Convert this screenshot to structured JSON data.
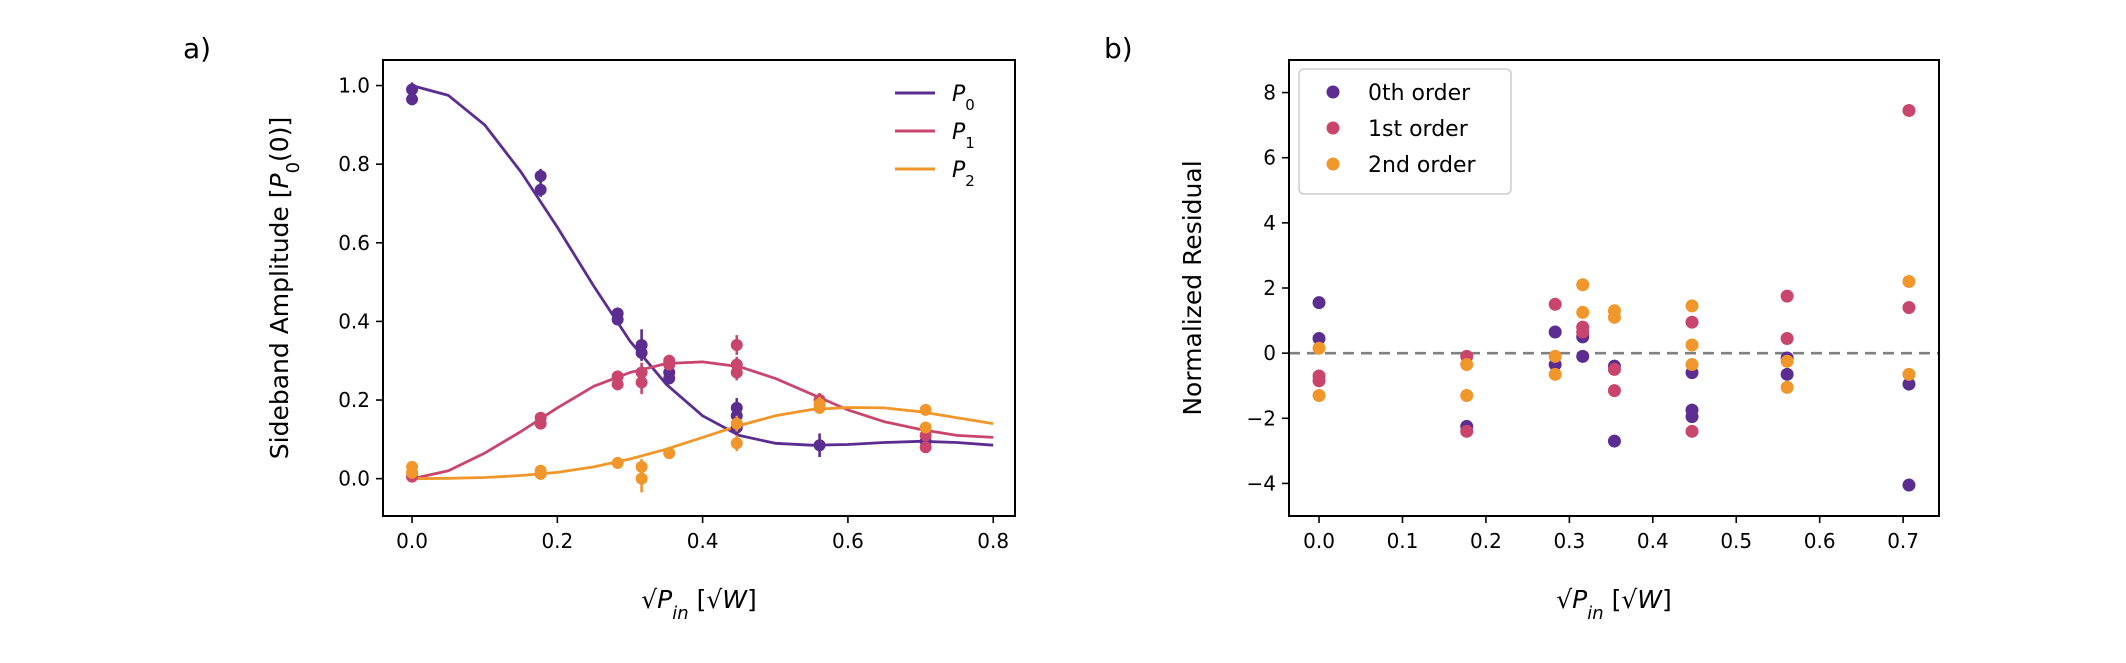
{
  "colors": {
    "P0": "#5c2d91",
    "P1": "#c9456e",
    "P2": "#f0962a",
    "zero_line": "#808080"
  },
  "chart_data": [
    {
      "panel_label": "a)",
      "type": "line",
      "xlabel": "√P_in [√W]",
      "ylabel": "Sideband Amplitude [P0(0)]",
      "xlim": [
        -0.04,
        0.83
      ],
      "ylim": [
        -0.095,
        1.065
      ],
      "xticks": [
        0.0,
        0.2,
        0.4,
        0.6,
        0.8
      ],
      "yticks": [
        0.0,
        0.2,
        0.4,
        0.6,
        0.8,
        1.0
      ],
      "xtick_labels": [
        "0.0",
        "0.2",
        "0.4",
        "0.6",
        "0.8"
      ],
      "ytick_labels": [
        "0.0",
        "0.2",
        "0.4",
        "0.6",
        "0.8",
        "1.0"
      ],
      "legend_position": "top-right",
      "fit_curves": [
        {
          "name": "P0",
          "color_key": "P0",
          "x": [
            0,
            0.05,
            0.1,
            0.15,
            0.2,
            0.25,
            0.3,
            0.35,
            0.4,
            0.45,
            0.5,
            0.55,
            0.6,
            0.65,
            0.7,
            0.75,
            0.8
          ],
          "y": [
            1.0,
            0.975,
            0.9,
            0.78,
            0.64,
            0.49,
            0.35,
            0.24,
            0.16,
            0.11,
            0.09,
            0.085,
            0.087,
            0.092,
            0.095,
            0.092,
            0.085
          ]
        },
        {
          "name": "P1",
          "color_key": "P1",
          "x": [
            0,
            0.05,
            0.1,
            0.15,
            0.2,
            0.25,
            0.3,
            0.35,
            0.4,
            0.45,
            0.5,
            0.55,
            0.6,
            0.65,
            0.7,
            0.75,
            0.8
          ],
          "y": [
            0,
            0.02,
            0.065,
            0.12,
            0.18,
            0.235,
            0.27,
            0.293,
            0.297,
            0.285,
            0.255,
            0.215,
            0.175,
            0.145,
            0.125,
            0.11,
            0.105
          ]
        },
        {
          "name": "P2",
          "color_key": "P2",
          "x": [
            0,
            0.05,
            0.1,
            0.15,
            0.2,
            0.25,
            0.3,
            0.35,
            0.4,
            0.45,
            0.5,
            0.55,
            0.6,
            0.65,
            0.7,
            0.75,
            0.8
          ],
          "y": [
            0,
            0.001,
            0.003,
            0.008,
            0.016,
            0.03,
            0.05,
            0.075,
            0.105,
            0.135,
            0.16,
            0.176,
            0.181,
            0.18,
            0.17,
            0.155,
            0.14
          ]
        }
      ],
      "scatter_series": [
        {
          "name": "P0 data",
          "color_key": "P0",
          "points": [
            [
              0,
              0.99,
              0.018
            ],
            [
              0,
              0.965,
              0.015
            ],
            [
              0.177,
              0.77,
              0.018
            ],
            [
              0.177,
              0.735,
              0.018
            ],
            [
              0.283,
              0.42,
              0.015
            ],
            [
              0.283,
              0.405,
              0.012
            ],
            [
              0.316,
              0.34,
              0.04
            ],
            [
              0.316,
              0.32,
              0.02
            ],
            [
              0.354,
              0.27,
              0.015
            ],
            [
              0.354,
              0.255,
              0.015
            ],
            [
              0.447,
              0.18,
              0.025
            ],
            [
              0.447,
              0.16,
              0.02
            ],
            [
              0.447,
              0.13,
              0.02
            ],
            [
              0.561,
              0.085,
              0.03
            ],
            [
              0.707,
              0.095,
              0.012
            ]
          ]
        },
        {
          "name": "P1 data",
          "color_key": "P1",
          "points": [
            [
              0,
              0.005,
              0.01
            ],
            [
              0.177,
              0.155,
              0.012
            ],
            [
              0.177,
              0.14,
              0.012
            ],
            [
              0.283,
              0.26,
              0.015
            ],
            [
              0.283,
              0.24,
              0.015
            ],
            [
              0.316,
              0.27,
              0.025
            ],
            [
              0.316,
              0.245,
              0.03
            ],
            [
              0.354,
              0.3,
              0.015
            ],
            [
              0.354,
              0.29,
              0.012
            ],
            [
              0.447,
              0.34,
              0.025
            ],
            [
              0.447,
              0.29,
              0.02
            ],
            [
              0.447,
              0.27,
              0.02
            ],
            [
              0.561,
              0.2,
              0.018
            ],
            [
              0.707,
              0.11,
              0.012
            ],
            [
              0.707,
              0.08,
              0.012
            ]
          ]
        },
        {
          "name": "P2 data",
          "color_key": "P2",
          "points": [
            [
              0,
              0.03,
              0.012
            ],
            [
              0,
              0.015,
              0.01
            ],
            [
              0.177,
              0.02,
              0.012
            ],
            [
              0.177,
              0.012,
              0.01
            ],
            [
              0.283,
              0.04,
              0.015
            ],
            [
              0.316,
              0.03,
              0.02
            ],
            [
              0.316,
              0.0,
              0.035
            ],
            [
              0.354,
              0.065,
              0.012
            ],
            [
              0.447,
              0.14,
              0.02
            ],
            [
              0.447,
              0.09,
              0.02
            ],
            [
              0.561,
              0.19,
              0.018
            ],
            [
              0.561,
              0.18,
              0.015
            ],
            [
              0.707,
              0.175,
              0.012
            ],
            [
              0.707,
              0.13,
              0.012
            ]
          ]
        }
      ],
      "legend": [
        {
          "label": "P",
          "sub": "0",
          "color_key": "P0"
        },
        {
          "label": "P",
          "sub": "1",
          "color_key": "P1"
        },
        {
          "label": "P",
          "sub": "2",
          "color_key": "P2"
        }
      ]
    },
    {
      "panel_label": "b)",
      "type": "scatter",
      "xlabel": "√P_in [√W]",
      "ylabel": "Normalized Residual",
      "xlim": [
        -0.036,
        0.743
      ],
      "ylim": [
        -5.0,
        9.0
      ],
      "xticks": [
        0.0,
        0.1,
        0.2,
        0.3,
        0.4,
        0.5,
        0.6,
        0.7
      ],
      "yticks": [
        -4,
        -2,
        0,
        2,
        4,
        6,
        8
      ],
      "xtick_labels": [
        "0.0",
        "0.1",
        "0.2",
        "0.3",
        "0.4",
        "0.5",
        "0.6",
        "0.7"
      ],
      "ytick_labels": [
        "−4",
        "−2",
        "0",
        "2",
        "4",
        "6",
        "8"
      ],
      "zero_line": true,
      "legend_position": "top-left",
      "series": [
        {
          "name": "0th order",
          "color_key": "P0",
          "points": [
            [
              0,
              1.55
            ],
            [
              0,
              0.45
            ],
            [
              0.177,
              -2.25
            ],
            [
              0.283,
              0.65
            ],
            [
              0.283,
              -0.35
            ],
            [
              0.316,
              0.5
            ],
            [
              0.316,
              -0.1
            ],
            [
              0.354,
              -0.4
            ],
            [
              0.354,
              -2.7
            ],
            [
              0.447,
              -1.75
            ],
            [
              0.447,
              -1.95
            ],
            [
              0.447,
              -0.6
            ],
            [
              0.561,
              -0.15
            ],
            [
              0.561,
              -0.65
            ],
            [
              0.707,
              -0.95
            ],
            [
              0.707,
              -4.05
            ]
          ]
        },
        {
          "name": "1st order",
          "color_key": "P1",
          "points": [
            [
              0,
              -0.7
            ],
            [
              0,
              -0.85
            ],
            [
              0.177,
              -0.1
            ],
            [
              0.177,
              -2.4
            ],
            [
              0.283,
              1.5
            ],
            [
              0.316,
              0.8
            ],
            [
              0.316,
              0.65
            ],
            [
              0.354,
              -0.5
            ],
            [
              0.354,
              -1.15
            ],
            [
              0.447,
              0.95
            ],
            [
              0.447,
              -2.4
            ],
            [
              0.561,
              1.75
            ],
            [
              0.561,
              0.45
            ],
            [
              0.707,
              7.45
            ],
            [
              0.707,
              1.4
            ]
          ]
        },
        {
          "name": "2nd order",
          "color_key": "P2",
          "points": [
            [
              0,
              0.15
            ],
            [
              0,
              -1.3
            ],
            [
              0.177,
              -0.35
            ],
            [
              0.177,
              -1.3
            ],
            [
              0.283,
              -0.1
            ],
            [
              0.283,
              -0.65
            ],
            [
              0.316,
              2.1
            ],
            [
              0.316,
              1.25
            ],
            [
              0.354,
              1.3
            ],
            [
              0.354,
              1.1
            ],
            [
              0.447,
              1.45
            ],
            [
              0.447,
              0.25
            ],
            [
              0.447,
              -0.35
            ],
            [
              0.561,
              -0.25
            ],
            [
              0.561,
              -1.05
            ],
            [
              0.707,
              2.2
            ],
            [
              0.707,
              -0.65
            ]
          ]
        }
      ],
      "legend": [
        {
          "label": "0th order",
          "color_key": "P0"
        },
        {
          "label": "1st order",
          "color_key": "P1"
        },
        {
          "label": "2nd order",
          "color_key": "P2"
        }
      ]
    }
  ]
}
